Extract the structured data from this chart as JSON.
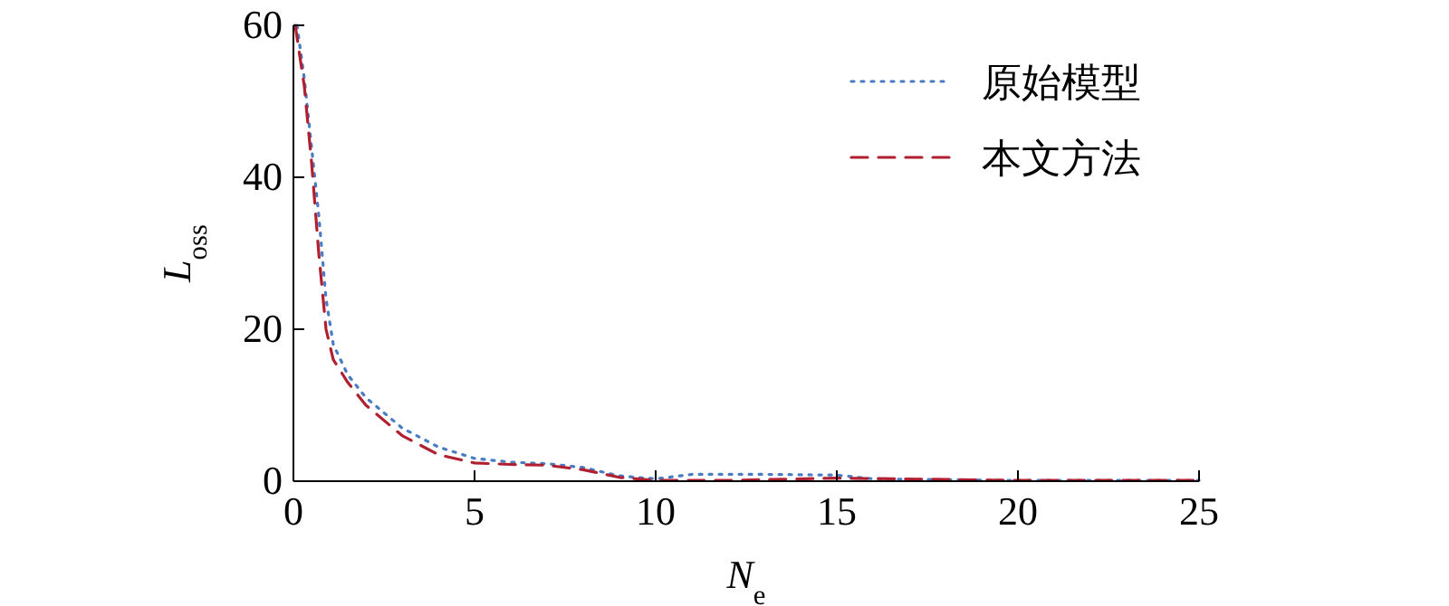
{
  "chart_data": {
    "type": "line",
    "xlabel": "N$_{e}$",
    "ylabel": "L$_{oss}$",
    "xlim": [
      0,
      25
    ],
    "ylim": [
      0,
      60
    ],
    "xticks": [
      0,
      5,
      10,
      15,
      20,
      25
    ],
    "yticks": [
      0,
      20,
      40,
      60
    ],
    "grid": false,
    "legend": "top right",
    "series": [
      {
        "name": "原始模型",
        "color": "#4a7cc4",
        "line_style": "dotted",
        "x": [
          0.1,
          0.3,
          0.5,
          0.7,
          0.9,
          1.1,
          1.5,
          2,
          3,
          4,
          5,
          6,
          7,
          8,
          9,
          10,
          11,
          13,
          15,
          16,
          20,
          25
        ],
        "values": [
          60,
          53,
          44,
          35,
          24,
          18,
          14,
          11,
          7,
          4.5,
          3,
          2.5,
          2.3,
          1.8,
          0.7,
          0.3,
          0.9,
          0.9,
          0.8,
          0.3,
          0.1,
          0.1
        ]
      },
      {
        "name": "本文方法",
        "color": "#b02030",
        "line_style": "dashed",
        "x": [
          0.05,
          0.3,
          0.5,
          0.7,
          0.9,
          1.1,
          1.5,
          2,
          3,
          4,
          5,
          6,
          7,
          8,
          9,
          10,
          12,
          15,
          20,
          25
        ],
        "values": [
          60,
          52,
          42,
          30,
          20,
          16,
          13,
          10,
          6,
          3.5,
          2.4,
          2.2,
          2.1,
          1.5,
          0.5,
          0.1,
          0.1,
          0.4,
          0.1,
          0.1
        ]
      }
    ]
  }
}
